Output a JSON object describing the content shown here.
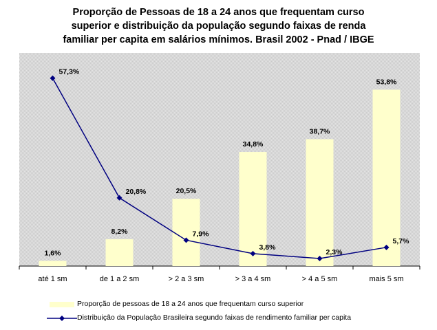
{
  "chart_data": {
    "type": "bar",
    "title": [
      "Proporção de Pessoas de 18 a 24 anos que frequentam curso",
      "superior  e distribuição da população segundo faixas de renda",
      "familiar per capita em salários mínimos. Brasil 2002 - Pnad / IBGE"
    ],
    "categories": [
      "até 1 sm",
      "de 1 a 2 sm",
      "> 2 a 3 sm",
      "> 3 a 4 sm",
      "> 4 a 5 sm",
      "mais 5 sm"
    ],
    "ylim": [
      0,
      65
    ],
    "grid": false,
    "legend_position": "bottom",
    "series": [
      {
        "name": "Proporção de pessoas de 18 a 24 anos que frequentam curso superior",
        "kind": "bar",
        "color": "#ffffcc",
        "values": [
          1.6,
          8.2,
          20.5,
          34.8,
          38.7,
          53.8
        ],
        "labels": [
          "1,6%",
          "8,2%",
          "20,5%",
          "34,8%",
          "38,7%",
          "53,8%"
        ]
      },
      {
        "name": "Distribuição da População Brasileira segundo faixas de rendimento familiar per capita",
        "kind": "line",
        "color": "#000080",
        "marker": "diamond",
        "values": [
          57.3,
          20.8,
          7.9,
          3.8,
          2.3,
          5.7
        ],
        "labels": [
          "57,3%",
          "20,8%",
          "7,9%",
          "3,8%",
          "2,3%",
          "5,7%"
        ]
      }
    ],
    "plot_background": "#d4d4d4"
  }
}
